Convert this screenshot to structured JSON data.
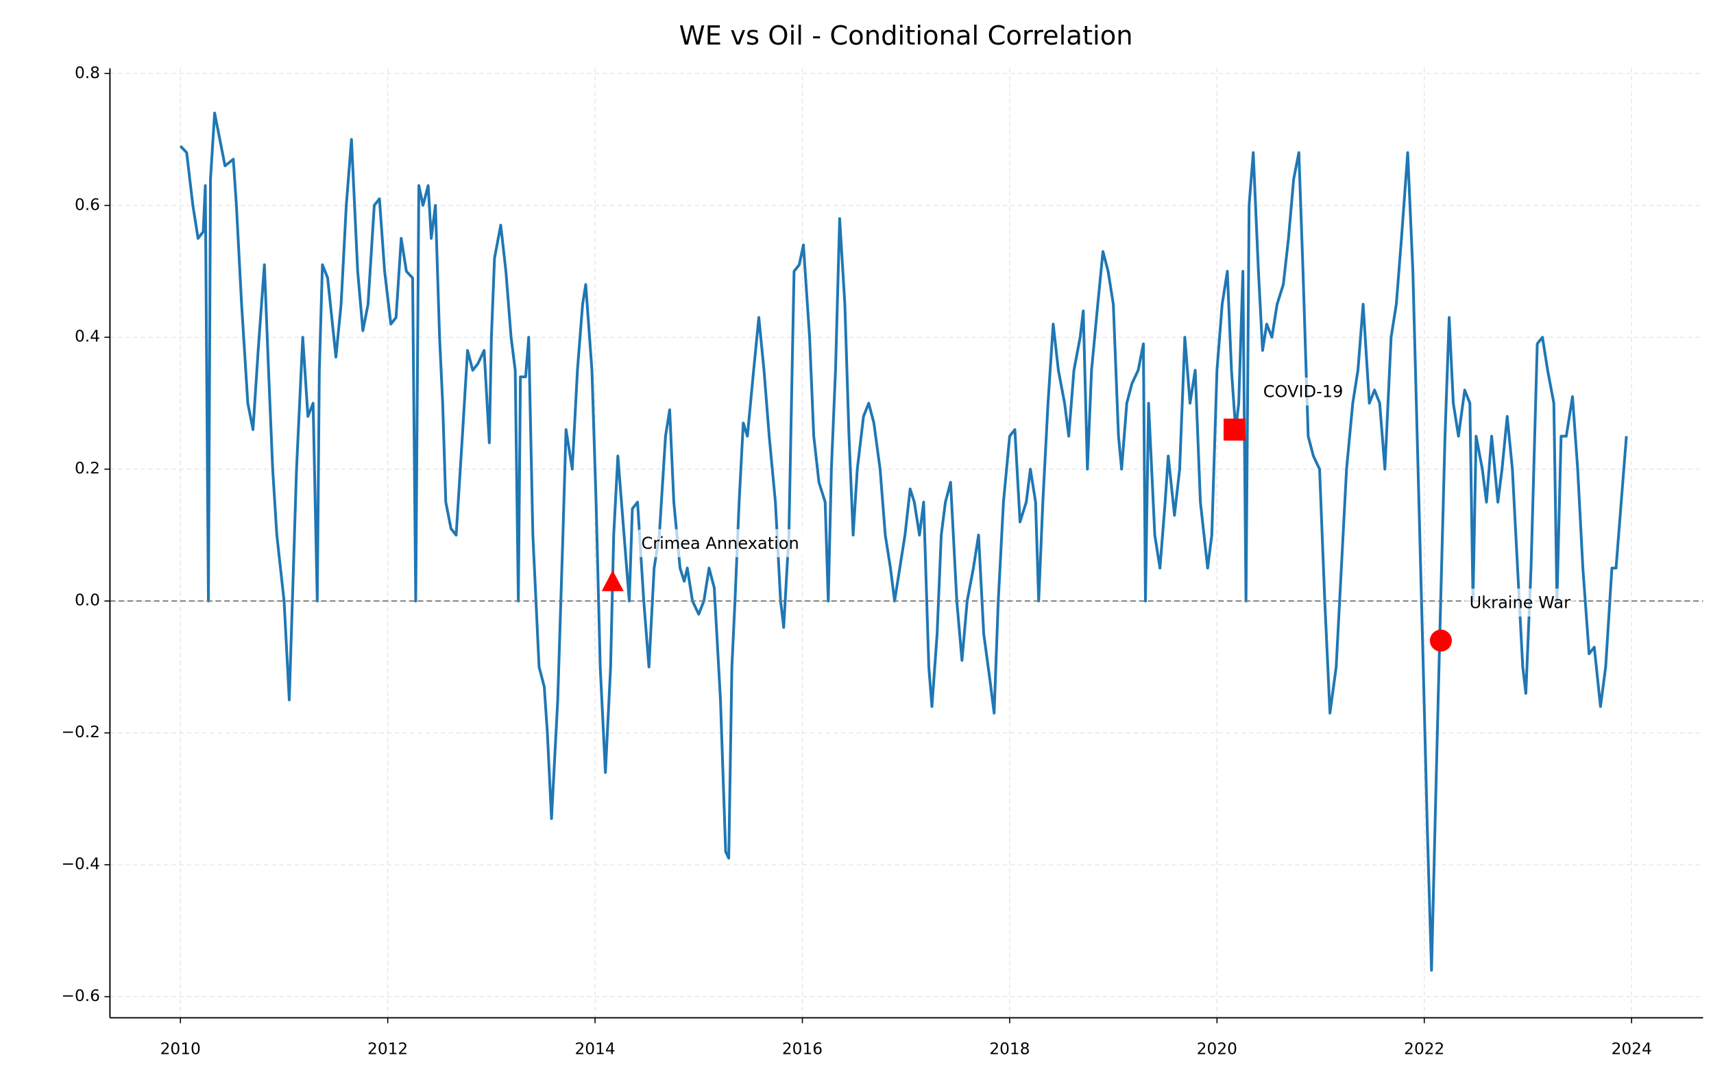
{
  "chart_data": {
    "type": "line",
    "title": "WE vs Oil - Conditional Correlation",
    "color": "#1f77b4",
    "grid": true,
    "reference_line": 0,
    "xlim": [
      2009.32,
      2024.69
    ],
    "ylim": [
      -0.632,
      0.808
    ],
    "xticks": [
      2010,
      2012,
      2014,
      2016,
      2018,
      2020,
      2022,
      2024
    ],
    "yticks": [
      {
        "value": -0.6,
        "label": "−0.6"
      },
      {
        "value": -0.4,
        "label": "−0.4"
      },
      {
        "value": -0.2,
        "label": "−0.2"
      },
      {
        "value": 0,
        "label": "0.0"
      },
      0.2,
      0.4,
      0.6,
      0.8
    ],
    "x": [
      2010.0,
      2010.06,
      2010.12,
      2010.17,
      2010.22,
      2010.24,
      2010.27,
      2010.29,
      2010.33,
      2010.38,
      2010.43,
      2010.51,
      2010.54,
      2010.59,
      2010.65,
      2010.7,
      2010.75,
      2010.81,
      2010.85,
      2010.89,
      2010.93,
      2011.0,
      2011.05,
      2011.12,
      2011.18,
      2011.23,
      2011.28,
      2011.32,
      2011.34,
      2011.37,
      2011.42,
      2011.5,
      2011.55,
      2011.6,
      2011.65,
      2011.71,
      2011.76,
      2011.81,
      2011.87,
      2011.92,
      2011.97,
      2012.03,
      2012.08,
      2012.13,
      2012.18,
      2012.24,
      2012.27,
      2012.3,
      2012.34,
      2012.39,
      2012.42,
      2012.46,
      2012.5,
      2012.53,
      2012.56,
      2012.61,
      2012.66,
      2012.72,
      2012.77,
      2012.82,
      2012.87,
      2012.93,
      2012.98,
      2013.0,
      2013.03,
      2013.09,
      2013.14,
      2013.19,
      2013.23,
      2013.26,
      2013.28,
      2013.33,
      2013.36,
      2013.4,
      2013.46,
      2013.51,
      2013.54,
      2013.58,
      2013.64,
      2013.69,
      2013.72,
      2013.78,
      2013.83,
      2013.88,
      2013.91,
      2013.97,
      2014.01,
      2014.05,
      2014.1,
      2014.15,
      2014.18,
      2014.22,
      2014.28,
      2014.33,
      2014.36,
      2014.41,
      2014.47,
      2014.52,
      2014.57,
      2014.62,
      2014.68,
      2014.72,
      2014.76,
      2014.82,
      2014.86,
      2014.89,
      2014.94,
      2015.0,
      2015.05,
      2015.1,
      2015.15,
      2015.21,
      2015.26,
      2015.29,
      2015.32,
      2015.35,
      2015.39,
      2015.43,
      2015.47,
      2015.53,
      2015.58,
      2015.63,
      2015.68,
      2015.74,
      2015.79,
      2015.82,
      2015.87,
      2015.92,
      2015.97,
      2016.01,
      2016.07,
      2016.11,
      2016.16,
      2016.22,
      2016.25,
      2016.28,
      2016.32,
      2016.36,
      2016.41,
      2016.45,
      2016.49,
      2016.53,
      2016.59,
      2016.64,
      2016.69,
      2016.75,
      2016.8,
      2016.85,
      2016.89,
      2016.94,
      2016.99,
      2017.04,
      2017.08,
      2017.13,
      2017.17,
      2017.22,
      2017.25,
      2017.3,
      2017.34,
      2017.38,
      2017.43,
      2017.49,
      2017.54,
      2017.59,
      2017.65,
      2017.7,
      2017.75,
      2017.81,
      2017.85,
      2017.89,
      2017.94,
      2018.0,
      2018.05,
      2018.1,
      2018.16,
      2018.2,
      2018.25,
      2018.28,
      2018.32,
      2018.37,
      2018.42,
      2018.47,
      2018.53,
      2018.57,
      2018.62,
      2018.68,
      2018.71,
      2018.75,
      2018.79,
      2018.85,
      2018.9,
      2018.95,
      2019.0,
      2019.05,
      2019.08,
      2019.13,
      2019.18,
      2019.24,
      2019.29,
      2019.31,
      2019.34,
      2019.4,
      2019.45,
      2019.5,
      2019.53,
      2019.59,
      2019.64,
      2019.69,
      2019.74,
      2019.79,
      2019.84,
      2019.91,
      2019.95,
      2020.0,
      2020.05,
      2020.1,
      2020.14,
      2020.18,
      2020.21,
      2020.25,
      2020.28,
      2020.31,
      2020.35,
      2020.4,
      2020.44,
      2020.48,
      2020.53,
      2020.58,
      2020.64,
      2020.69,
      2020.74,
      2020.79,
      2020.83,
      2020.88,
      2020.93,
      2020.99,
      2021.04,
      2021.09,
      2021.15,
      2021.2,
      2021.25,
      2021.31,
      2021.36,
      2021.41,
      2021.47,
      2021.52,
      2021.57,
      2021.62,
      2021.68,
      2021.73,
      2021.78,
      2021.84,
      2021.89,
      2021.94,
      2021.99,
      2022.03,
      2022.07,
      2022.11,
      2022.15,
      2022.2,
      2022.24,
      2022.28,
      2022.33,
      2022.39,
      2022.44,
      2022.47,
      2022.5,
      2022.56,
      2022.6,
      2022.65,
      2022.71,
      2022.75,
      2022.8,
      2022.85,
      2022.9,
      2022.95,
      2022.98,
      2023.03,
      2023.09,
      2023.14,
      2023.19,
      2023.25,
      2023.28,
      2023.32,
      2023.37,
      2023.43,
      2023.48,
      2023.53,
      2023.59,
      2023.64,
      2023.7,
      2023.75,
      2023.81,
      2023.85,
      2023.9,
      2023.95
    ],
    "values": [
      0.69,
      0.68,
      0.6,
      0.55,
      0.56,
      0.63,
      0.0,
      0.64,
      0.74,
      0.7,
      0.66,
      0.67,
      0.6,
      0.45,
      0.3,
      0.26,
      0.38,
      0.51,
      0.35,
      0.2,
      0.1,
      0.0,
      -0.15,
      0.2,
      0.4,
      0.28,
      0.3,
      0.0,
      0.35,
      0.51,
      0.49,
      0.37,
      0.45,
      0.6,
      0.7,
      0.5,
      0.41,
      0.45,
      0.6,
      0.61,
      0.5,
      0.42,
      0.43,
      0.55,
      0.5,
      0.49,
      0.0,
      0.63,
      0.6,
      0.63,
      0.55,
      0.6,
      0.4,
      0.3,
      0.15,
      0.11,
      0.1,
      0.25,
      0.38,
      0.35,
      0.36,
      0.38,
      0.24,
      0.4,
      0.52,
      0.57,
      0.5,
      0.4,
      0.35,
      0.0,
      0.34,
      0.34,
      0.4,
      0.1,
      -0.1,
      -0.13,
      -0.2,
      -0.33,
      -0.15,
      0.1,
      0.26,
      0.2,
      0.35,
      0.45,
      0.48,
      0.35,
      0.15,
      -0.1,
      -0.26,
      -0.1,
      0.1,
      0.22,
      0.1,
      0.0,
      0.14,
      0.15,
      0.0,
      -0.1,
      0.05,
      0.1,
      0.25,
      0.29,
      0.15,
      0.05,
      0.03,
      0.05,
      0.0,
      -0.02,
      0.0,
      0.05,
      0.02,
      -0.15,
      -0.38,
      -0.39,
      -0.1,
      0.0,
      0.15,
      0.27,
      0.25,
      0.35,
      0.43,
      0.35,
      0.25,
      0.15,
      0.0,
      -0.04,
      0.1,
      0.5,
      0.51,
      0.54,
      0.4,
      0.25,
      0.18,
      0.15,
      0.0,
      0.2,
      0.35,
      0.58,
      0.45,
      0.25,
      0.1,
      0.2,
      0.28,
      0.3,
      0.27,
      0.2,
      0.1,
      0.05,
      0.0,
      0.05,
      0.1,
      0.17,
      0.15,
      0.1,
      0.15,
      -0.1,
      -0.16,
      -0.05,
      0.1,
      0.15,
      0.18,
      0.0,
      -0.09,
      0.0,
      0.05,
      0.1,
      -0.05,
      -0.12,
      -0.17,
      0.0,
      0.15,
      0.25,
      0.26,
      0.12,
      0.15,
      0.2,
      0.15,
      0.0,
      0.15,
      0.3,
      0.42,
      0.35,
      0.3,
      0.25,
      0.35,
      0.4,
      0.44,
      0.2,
      0.35,
      0.45,
      0.53,
      0.5,
      0.45,
      0.25,
      0.2,
      0.3,
      0.33,
      0.35,
      0.39,
      0.0,
      0.3,
      0.1,
      0.05,
      0.15,
      0.22,
      0.13,
      0.2,
      0.4,
      0.3,
      0.35,
      0.15,
      0.05,
      0.1,
      0.35,
      0.45,
      0.5,
      0.35,
      0.26,
      0.3,
      0.5,
      0.0,
      0.6,
      0.68,
      0.5,
      0.38,
      0.42,
      0.4,
      0.45,
      0.48,
      0.55,
      0.64,
      0.68,
      0.5,
      0.25,
      0.22,
      0.2,
      0.0,
      -0.17,
      -0.1,
      0.05,
      0.2,
      0.3,
      0.35,
      0.45,
      0.3,
      0.32,
      0.3,
      0.2,
      0.4,
      0.45,
      0.55,
      0.68,
      0.5,
      0.2,
      -0.1,
      -0.35,
      -0.56,
      -0.3,
      -0.05,
      0.25,
      0.43,
      0.3,
      0.25,
      0.32,
      0.3,
      0.0,
      0.25,
      0.2,
      0.15,
      0.25,
      0.15,
      0.2,
      0.28,
      0.2,
      0.05,
      -0.1,
      -0.14,
      0.05,
      0.39,
      0.4,
      0.35,
      0.3,
      0.0,
      0.25,
      0.25,
      0.31,
      0.2,
      0.05,
      -0.08,
      -0.07,
      -0.16,
      -0.1,
      0.05,
      0.05,
      0.15,
      0.25
    ],
    "annotations": [
      {
        "text": "Crimea Annexation",
        "x": 2014.17,
        "y": 0.03,
        "marker": "triangle",
        "color": "#ff0000"
      },
      {
        "text": "COVID-19",
        "x": 2020.17,
        "y": 0.26,
        "marker": "square",
        "color": "#ff0000"
      },
      {
        "text": "Ukraine War",
        "x": 2022.16,
        "y": -0.06,
        "marker": "circle",
        "color": "#ff0000"
      }
    ]
  }
}
